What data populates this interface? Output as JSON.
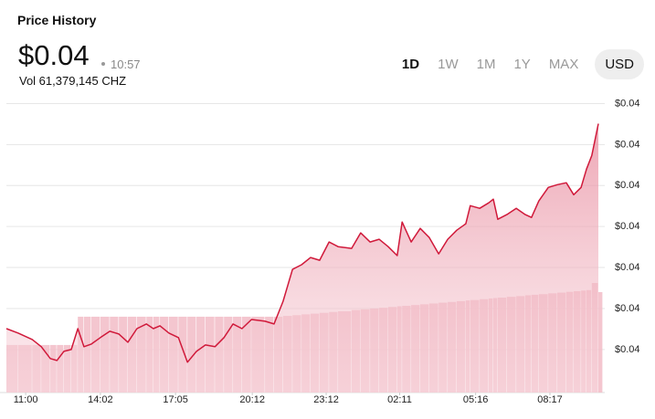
{
  "header": {
    "title": "Price History",
    "price": "$0.04",
    "time": "10:57",
    "volume": "Vol 61,379,145 CHZ",
    "ranges": [
      "1D",
      "1W",
      "1M",
      "1Y",
      "MAX"
    ],
    "currency": "USD"
  },
  "chart_data": {
    "type": "line",
    "color": "#d0193a",
    "volume_color": "#f2bcc7",
    "x": [
      -47,
      -18,
      16,
      38,
      60,
      76,
      93,
      111,
      127,
      142,
      160,
      182,
      205,
      227,
      249,
      271,
      294,
      311,
      327,
      349,
      372,
      394,
      416,
      438,
      461,
      483,
      505,
      527,
      550,
      583,
      605,
      627,
      650,
      672,
      694,
      716,
      739,
      761,
      794,
      816,
      839,
      861,
      883,
      905,
      917,
      939,
      961,
      983,
      1006,
      1028,
      1050,
      1072,
      1083,
      1106,
      1128,
      1139,
      1150,
      1172,
      1195,
      1217,
      1232,
      1250,
      1273,
      1295,
      1317,
      1335,
      1353,
      1366,
      1379,
      1395
    ],
    "values": [
      0.041404,
      0.04136,
      0.041298,
      0.041227,
      0.041111,
      0.041093,
      0.041182,
      0.0412,
      0.041404,
      0.041227,
      0.041253,
      0.041316,
      0.041378,
      0.041351,
      0.041271,
      0.041404,
      0.041449,
      0.041404,
      0.041431,
      0.04136,
      0.041316,
      0.041076,
      0.041182,
      0.041244,
      0.041227,
      0.041316,
      0.041449,
      0.041404,
      0.041493,
      0.041476,
      0.041449,
      0.041671,
      0.041982,
      0.042027,
      0.042098,
      0.042071,
      0.042249,
      0.042204,
      0.042187,
      0.042338,
      0.042249,
      0.042276,
      0.042204,
      0.042116,
      0.042444,
      0.042249,
      0.042382,
      0.042293,
      0.042133,
      0.042276,
      0.042364,
      0.042427,
      0.042604,
      0.042578,
      0.042631,
      0.042667,
      0.042471,
      0.042516,
      0.042578,
      0.042516,
      0.042489,
      0.042649,
      0.042782,
      0.042809,
      0.042827,
      0.042711,
      0.042782,
      0.04296,
      0.043093,
      0.043404
    ],
    "volume": [
      0.041244,
      0.041244,
      0.041244,
      0.041244,
      0.041244,
      0.041244,
      0.041244,
      0.041244,
      0.04152,
      0.04152,
      0.04152,
      0.04152,
      0.04152,
      0.04152,
      0.04152,
      0.04152,
      0.04152,
      0.04152,
      0.04152,
      0.04152,
      0.04152,
      0.04152,
      0.04152,
      0.04152,
      0.04152,
      0.04152,
      0.04152,
      0.04152,
      0.04152,
      0.04152,
      0.04152,
      0.041528,
      0.041535,
      0.041543,
      0.04155,
      0.041558,
      0.041566,
      0.041573,
      0.041585,
      0.041592,
      0.0416,
      0.041607,
      0.041615,
      0.041622,
      0.041626,
      0.041634,
      0.041641,
      0.041649,
      0.041657,
      0.041664,
      0.041672,
      0.041679,
      0.041683,
      0.041691,
      0.041698,
      0.041702,
      0.041706,
      0.041714,
      0.041721,
      0.041729,
      0.041734,
      0.04174,
      0.041748,
      0.041755,
      0.041763,
      0.041769,
      0.041775,
      0.04178,
      0.041849,
      0.04176
    ],
    "xlim": [
      -47,
      1395
    ],
    "xticks": [
      {
        "value": 0,
        "label": "11:00"
      },
      {
        "value": 182,
        "label": "14:02"
      },
      {
        "value": 365,
        "label": "17:05"
      },
      {
        "value": 552,
        "label": "20:12"
      },
      {
        "value": 732,
        "label": "23:12"
      },
      {
        "value": 911,
        "label": "02:11"
      },
      {
        "value": 1096,
        "label": "05:16"
      },
      {
        "value": 1277,
        "label": "08:17"
      }
    ],
    "ylim": [
      0.04078,
      0.04372
    ],
    "yticks": [
      {
        "value": 0.0436,
        "label": "$0.04"
      },
      {
        "value": 0.0432,
        "label": "$0.04"
      },
      {
        "value": 0.0428,
        "label": "$0.04"
      },
      {
        "value": 0.0424,
        "label": "$0.04"
      },
      {
        "value": 0.042,
        "label": "$0.04"
      },
      {
        "value": 0.0416,
        "label": "$0.04"
      },
      {
        "value": 0.0412,
        "label": "$0.04"
      }
    ],
    "grid": true
  }
}
